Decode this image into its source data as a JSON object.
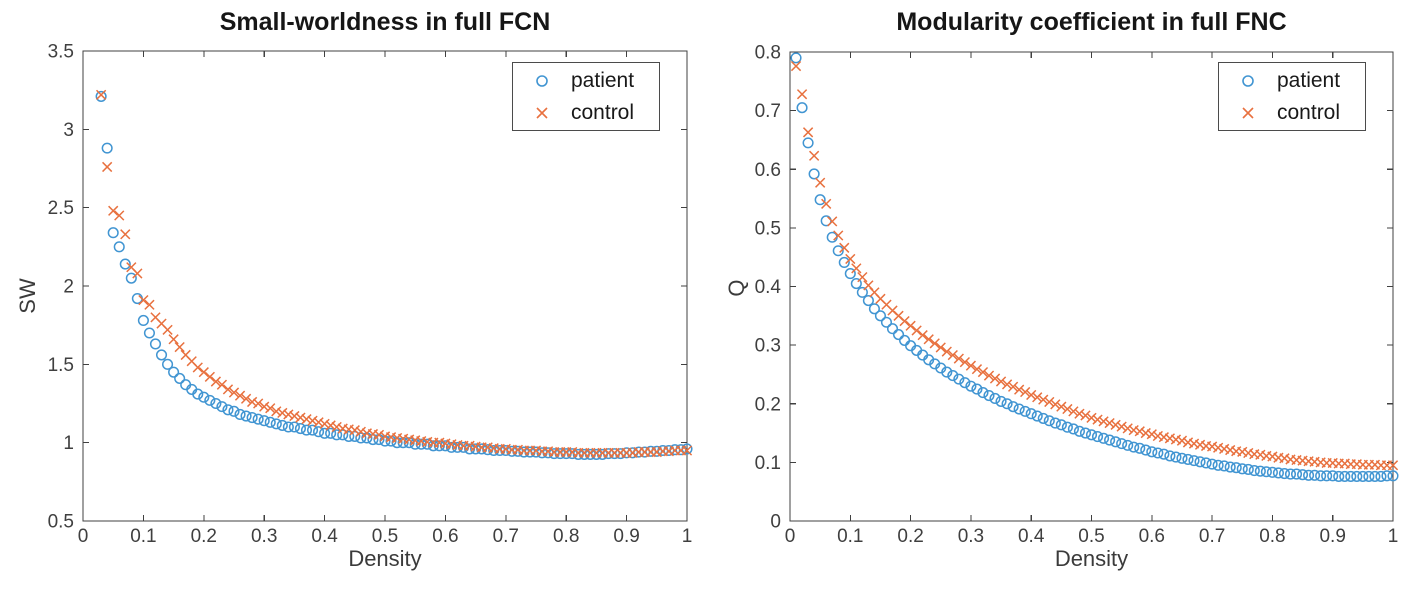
{
  "page": {
    "background": "#ffffff"
  },
  "chart_data": [
    {
      "type": "scatter",
      "title": "Small-worldness in full FCN",
      "xlabel": "Density",
      "ylabel": "SW",
      "xlim": [
        0,
        1
      ],
      "ylim": [
        0.5,
        3.5
      ],
      "x_ticks": [
        0,
        0.1,
        0.2,
        0.3,
        0.4,
        0.5,
        0.6,
        0.7,
        0.8,
        0.9,
        1
      ],
      "x_tick_labels": [
        "0",
        "0.1",
        "0.2",
        "0.3",
        "0.4",
        "0.5",
        "0.6",
        "0.7",
        "0.8",
        "0.9",
        "1"
      ],
      "y_ticks": [
        0.5,
        1,
        1.5,
        2,
        2.5,
        3,
        3.5
      ],
      "y_tick_labels": [
        "0.5",
        "1",
        "1.5",
        "2",
        "2.5",
        "3",
        "3.5"
      ],
      "grid": false,
      "legend_position": "top-right",
      "axis_color": "#404040",
      "tick_label_color": "#3f3f3f",
      "series": [
        {
          "name": "patient",
          "marker": "circle",
          "color": "#4195D2",
          "x": [
            0.03,
            0.04,
            0.05,
            0.06,
            0.07,
            0.08,
            0.09,
            0.1,
            0.11,
            0.12,
            0.13,
            0.14,
            0.15,
            0.16,
            0.17,
            0.18,
            0.19,
            0.2,
            0.21,
            0.22,
            0.23,
            0.24,
            0.25,
            0.26,
            0.27,
            0.28,
            0.29,
            0.3,
            0.31,
            0.32,
            0.33,
            0.34,
            0.35,
            0.36,
            0.37,
            0.38,
            0.39,
            0.4,
            0.41,
            0.42,
            0.43,
            0.44,
            0.45,
            0.46,
            0.47,
            0.48,
            0.49,
            0.5,
            0.51,
            0.52,
            0.53,
            0.54,
            0.55,
            0.56,
            0.57,
            0.58,
            0.59,
            0.6,
            0.61,
            0.62,
            0.63,
            0.64,
            0.65,
            0.66,
            0.67,
            0.68,
            0.69,
            0.7,
            0.71,
            0.72,
            0.73,
            0.74,
            0.75,
            0.76,
            0.77,
            0.78,
            0.79,
            0.8,
            0.81,
            0.82,
            0.83,
            0.84,
            0.85,
            0.86,
            0.87,
            0.88,
            0.89,
            0.9,
            0.91,
            0.92,
            0.93,
            0.94,
            0.95,
            0.96,
            0.97,
            0.98,
            0.99,
            1.0
          ],
          "y": [
            3.21,
            2.88,
            2.34,
            2.25,
            2.14,
            2.05,
            1.92,
            1.78,
            1.7,
            1.63,
            1.56,
            1.5,
            1.45,
            1.41,
            1.37,
            1.34,
            1.31,
            1.29,
            1.27,
            1.25,
            1.23,
            1.21,
            1.2,
            1.18,
            1.17,
            1.16,
            1.15,
            1.14,
            1.13,
            1.12,
            1.11,
            1.1,
            1.1,
            1.09,
            1.08,
            1.08,
            1.07,
            1.06,
            1.06,
            1.05,
            1.05,
            1.04,
            1.04,
            1.03,
            1.03,
            1.02,
            1.02,
            1.01,
            1.01,
            1.0,
            1.0,
            1.0,
            0.99,
            0.99,
            0.99,
            0.98,
            0.98,
            0.98,
            0.97,
            0.97,
            0.97,
            0.96,
            0.96,
            0.96,
            0.955,
            0.95,
            0.95,
            0.95,
            0.945,
            0.945,
            0.94,
            0.94,
            0.94,
            0.935,
            0.935,
            0.93,
            0.93,
            0.93,
            0.93,
            0.925,
            0.925,
            0.925,
            0.925,
            0.925,
            0.93,
            0.93,
            0.93,
            0.935,
            0.935,
            0.94,
            0.94,
            0.945,
            0.945,
            0.95,
            0.95,
            0.955,
            0.955,
            0.96
          ]
        },
        {
          "name": "control",
          "marker": "x",
          "color": "#E8713F",
          "x": [
            0.03,
            0.04,
            0.05,
            0.06,
            0.07,
            0.08,
            0.09,
            0.1,
            0.11,
            0.12,
            0.13,
            0.14,
            0.15,
            0.16,
            0.17,
            0.18,
            0.19,
            0.2,
            0.21,
            0.22,
            0.23,
            0.24,
            0.25,
            0.26,
            0.27,
            0.28,
            0.29,
            0.3,
            0.31,
            0.32,
            0.33,
            0.34,
            0.35,
            0.36,
            0.37,
            0.38,
            0.39,
            0.4,
            0.41,
            0.42,
            0.43,
            0.44,
            0.45,
            0.46,
            0.47,
            0.48,
            0.49,
            0.5,
            0.51,
            0.52,
            0.53,
            0.54,
            0.55,
            0.56,
            0.57,
            0.58,
            0.59,
            0.6,
            0.61,
            0.62,
            0.63,
            0.64,
            0.65,
            0.66,
            0.67,
            0.68,
            0.69,
            0.7,
            0.71,
            0.72,
            0.73,
            0.74,
            0.75,
            0.76,
            0.77,
            0.78,
            0.79,
            0.8,
            0.81,
            0.82,
            0.83,
            0.84,
            0.85,
            0.86,
            0.87,
            0.88,
            0.89,
            0.9,
            0.91,
            0.92,
            0.93,
            0.94,
            0.95,
            0.96,
            0.97,
            0.98,
            0.99,
            1.0
          ],
          "y": [
            3.22,
            2.76,
            2.48,
            2.45,
            2.33,
            2.12,
            2.08,
            1.91,
            1.88,
            1.8,
            1.76,
            1.72,
            1.66,
            1.61,
            1.56,
            1.52,
            1.48,
            1.45,
            1.42,
            1.39,
            1.37,
            1.34,
            1.32,
            1.3,
            1.28,
            1.26,
            1.25,
            1.23,
            1.22,
            1.2,
            1.19,
            1.18,
            1.17,
            1.16,
            1.15,
            1.14,
            1.13,
            1.12,
            1.11,
            1.1,
            1.09,
            1.085,
            1.08,
            1.07,
            1.06,
            1.055,
            1.05,
            1.04,
            1.035,
            1.03,
            1.025,
            1.02,
            1.015,
            1.01,
            1.005,
            1.0,
            1.0,
            0.995,
            0.99,
            0.985,
            0.98,
            0.98,
            0.975,
            0.97,
            0.97,
            0.965,
            0.96,
            0.96,
            0.955,
            0.955,
            0.95,
            0.95,
            0.95,
            0.945,
            0.945,
            0.94,
            0.94,
            0.94,
            0.94,
            0.935,
            0.935,
            0.935,
            0.935,
            0.935,
            0.935,
            0.935,
            0.935,
            0.935,
            0.935,
            0.94,
            0.94,
            0.94,
            0.94,
            0.945,
            0.945,
            0.95,
            0.95,
            0.95
          ]
        }
      ]
    },
    {
      "type": "scatter",
      "title": "Modularity coefficient in full FNC",
      "xlabel": "Density",
      "ylabel": "Q",
      "xlim": [
        0,
        1
      ],
      "ylim": [
        0,
        0.8
      ],
      "x_ticks": [
        0,
        0.1,
        0.2,
        0.3,
        0.4,
        0.5,
        0.6,
        0.7,
        0.8,
        0.9,
        1
      ],
      "x_tick_labels": [
        "0",
        "0.1",
        "0.2",
        "0.3",
        "0.4",
        "0.5",
        "0.6",
        "0.7",
        "0.8",
        "0.9",
        "1"
      ],
      "y_ticks": [
        0,
        0.1,
        0.2,
        0.3,
        0.4,
        0.5,
        0.6,
        0.7,
        0.8
      ],
      "y_tick_labels": [
        "0",
        "0.1",
        "0.2",
        "0.3",
        "0.4",
        "0.5",
        "0.6",
        "0.7",
        "0.8"
      ],
      "grid": false,
      "legend_position": "top-right",
      "axis_color": "#404040",
      "tick_label_color": "#3f3f3f",
      "series": [
        {
          "name": "patient",
          "marker": "circle",
          "color": "#4195D2",
          "x": [
            0.01,
            0.02,
            0.03,
            0.04,
            0.05,
            0.06,
            0.07,
            0.08,
            0.09,
            0.1,
            0.11,
            0.12,
            0.13,
            0.14,
            0.15,
            0.16,
            0.17,
            0.18,
            0.19,
            0.2,
            0.21,
            0.22,
            0.23,
            0.24,
            0.25,
            0.26,
            0.27,
            0.28,
            0.29,
            0.3,
            0.31,
            0.32,
            0.33,
            0.34,
            0.35,
            0.36,
            0.37,
            0.38,
            0.39,
            0.4,
            0.41,
            0.42,
            0.43,
            0.44,
            0.45,
            0.46,
            0.47,
            0.48,
            0.49,
            0.5,
            0.51,
            0.52,
            0.53,
            0.54,
            0.55,
            0.56,
            0.57,
            0.58,
            0.59,
            0.6,
            0.61,
            0.62,
            0.63,
            0.64,
            0.65,
            0.66,
            0.67,
            0.68,
            0.69,
            0.7,
            0.71,
            0.72,
            0.73,
            0.74,
            0.75,
            0.76,
            0.77,
            0.78,
            0.79,
            0.8,
            0.81,
            0.82,
            0.83,
            0.84,
            0.85,
            0.86,
            0.87,
            0.88,
            0.89,
            0.9,
            0.91,
            0.92,
            0.93,
            0.94,
            0.95,
            0.96,
            0.97,
            0.98,
            0.99,
            1.0
          ],
          "y": [
            0.79,
            0.705,
            0.645,
            0.592,
            0.548,
            0.512,
            0.484,
            0.461,
            0.441,
            0.422,
            0.405,
            0.39,
            0.376,
            0.362,
            0.35,
            0.339,
            0.328,
            0.318,
            0.308,
            0.299,
            0.291,
            0.283,
            0.275,
            0.268,
            0.261,
            0.254,
            0.248,
            0.242,
            0.236,
            0.23,
            0.225,
            0.219,
            0.214,
            0.209,
            0.204,
            0.2,
            0.195,
            0.191,
            0.187,
            0.183,
            0.179,
            0.175,
            0.171,
            0.167,
            0.164,
            0.16,
            0.157,
            0.153,
            0.15,
            0.147,
            0.144,
            0.141,
            0.138,
            0.135,
            0.132,
            0.129,
            0.126,
            0.124,
            0.121,
            0.118,
            0.116,
            0.114,
            0.111,
            0.109,
            0.107,
            0.105,
            0.103,
            0.101,
            0.099,
            0.097,
            0.095,
            0.094,
            0.092,
            0.091,
            0.089,
            0.088,
            0.086,
            0.085,
            0.084,
            0.083,
            0.082,
            0.081,
            0.08,
            0.08,
            0.079,
            0.078,
            0.078,
            0.077,
            0.077,
            0.077,
            0.076,
            0.076,
            0.076,
            0.076,
            0.076,
            0.076,
            0.076,
            0.076,
            0.077,
            0.077
          ]
        },
        {
          "name": "control",
          "marker": "x",
          "color": "#E8713F",
          "x": [
            0.01,
            0.02,
            0.03,
            0.04,
            0.05,
            0.06,
            0.07,
            0.08,
            0.09,
            0.1,
            0.11,
            0.12,
            0.13,
            0.14,
            0.15,
            0.16,
            0.17,
            0.18,
            0.19,
            0.2,
            0.21,
            0.22,
            0.23,
            0.24,
            0.25,
            0.26,
            0.27,
            0.28,
            0.29,
            0.3,
            0.31,
            0.32,
            0.33,
            0.34,
            0.35,
            0.36,
            0.37,
            0.38,
            0.39,
            0.4,
            0.41,
            0.42,
            0.43,
            0.44,
            0.45,
            0.46,
            0.47,
            0.48,
            0.49,
            0.5,
            0.51,
            0.52,
            0.53,
            0.54,
            0.55,
            0.56,
            0.57,
            0.58,
            0.59,
            0.6,
            0.61,
            0.62,
            0.63,
            0.64,
            0.65,
            0.66,
            0.67,
            0.68,
            0.69,
            0.7,
            0.71,
            0.72,
            0.73,
            0.74,
            0.75,
            0.76,
            0.77,
            0.78,
            0.79,
            0.8,
            0.81,
            0.82,
            0.83,
            0.84,
            0.85,
            0.86,
            0.87,
            0.88,
            0.89,
            0.9,
            0.91,
            0.92,
            0.93,
            0.94,
            0.95,
            0.96,
            0.97,
            0.98,
            0.99,
            1.0
          ],
          "y": [
            0.776,
            0.728,
            0.663,
            0.623,
            0.577,
            0.541,
            0.511,
            0.487,
            0.466,
            0.447,
            0.431,
            0.416,
            0.402,
            0.39,
            0.379,
            0.369,
            0.359,
            0.35,
            0.341,
            0.333,
            0.325,
            0.317,
            0.31,
            0.303,
            0.296,
            0.289,
            0.283,
            0.277,
            0.271,
            0.265,
            0.259,
            0.254,
            0.248,
            0.243,
            0.238,
            0.233,
            0.229,
            0.224,
            0.22,
            0.215,
            0.211,
            0.207,
            0.203,
            0.199,
            0.195,
            0.191,
            0.187,
            0.183,
            0.18,
            0.176,
            0.173,
            0.17,
            0.167,
            0.164,
            0.161,
            0.158,
            0.155,
            0.153,
            0.15,
            0.148,
            0.145,
            0.143,
            0.141,
            0.139,
            0.137,
            0.134,
            0.132,
            0.13,
            0.128,
            0.127,
            0.125,
            0.123,
            0.121,
            0.119,
            0.118,
            0.116,
            0.114,
            0.113,
            0.111,
            0.11,
            0.108,
            0.107,
            0.105,
            0.104,
            0.103,
            0.102,
            0.101,
            0.1,
            0.099,
            0.099,
            0.098,
            0.098,
            0.097,
            0.097,
            0.096,
            0.096,
            0.096,
            0.095,
            0.095,
            0.095
          ]
        }
      ]
    }
  ]
}
